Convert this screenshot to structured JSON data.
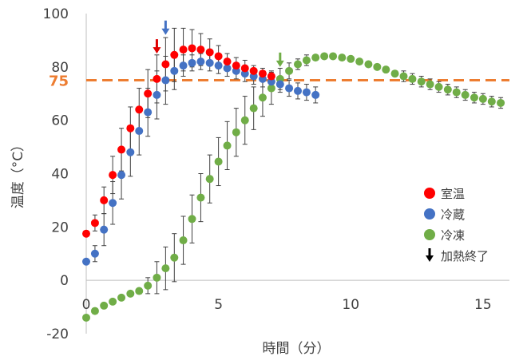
{
  "chart_data": {
    "type": "scatter",
    "xlabel": "時間（分）",
    "ylabel": "温度（°C）",
    "xlim": [
      0,
      16
    ],
    "ylim": [
      -20,
      100
    ],
    "x_ticks": [
      "0",
      "5",
      "10",
      "15"
    ],
    "y_ticks": [
      "-20",
      "0",
      "20",
      "40",
      "60",
      "80",
      "100"
    ],
    "grid": false,
    "legend_position": "right",
    "reference_line": {
      "y": 75,
      "label": "75",
      "color": "#ED7D31",
      "style": "dashed"
    },
    "series": [
      {
        "name": "室温",
        "color": "#FF0000",
        "points": [
          {
            "x": 0.0,
            "y": 17.5,
            "err": 0
          },
          {
            "x": 0.33,
            "y": 21.5,
            "err": 3
          },
          {
            "x": 0.67,
            "y": 30,
            "err": 5
          },
          {
            "x": 1.0,
            "y": 39.5,
            "err": 7
          },
          {
            "x": 1.33,
            "y": 49,
            "err": 8
          },
          {
            "x": 1.67,
            "y": 57,
            "err": 8
          },
          {
            "x": 2.0,
            "y": 64,
            "err": 8
          },
          {
            "x": 2.33,
            "y": 70,
            "err": 9
          },
          {
            "x": 2.67,
            "y": 75.5,
            "err": 9
          },
          {
            "x": 3.0,
            "y": 81,
            "err": 10
          },
          {
            "x": 3.33,
            "y": 84.5,
            "err": 10
          },
          {
            "x": 3.67,
            "y": 86.5,
            "err": 8
          },
          {
            "x": 4.0,
            "y": 87,
            "err": 7
          },
          {
            "x": 4.33,
            "y": 86.5,
            "err": 6
          },
          {
            "x": 4.67,
            "y": 85.5,
            "err": 5
          },
          {
            "x": 5.0,
            "y": 84,
            "err": 4
          },
          {
            "x": 5.33,
            "y": 82,
            "err": 3
          },
          {
            "x": 5.67,
            "y": 80.5,
            "err": 3
          },
          {
            "x": 6.0,
            "y": 79.5,
            "err": 3
          },
          {
            "x": 6.33,
            "y": 78.5,
            "err": 2
          },
          {
            "x": 6.67,
            "y": 77.5,
            "err": 2
          },
          {
            "x": 7.0,
            "y": 76.5,
            "err": 2
          }
        ]
      },
      {
        "name": "冷蔵",
        "color": "#4472C4",
        "points": [
          {
            "x": 0.0,
            "y": 7,
            "err": 0
          },
          {
            "x": 0.33,
            "y": 10,
            "err": 3
          },
          {
            "x": 0.67,
            "y": 19,
            "err": 6
          },
          {
            "x": 1.0,
            "y": 29,
            "err": 8
          },
          {
            "x": 1.33,
            "y": 39.5,
            "err": 9
          },
          {
            "x": 1.67,
            "y": 48,
            "err": 9
          },
          {
            "x": 2.0,
            "y": 56,
            "err": 9
          },
          {
            "x": 2.33,
            "y": 63,
            "err": 9
          },
          {
            "x": 2.67,
            "y": 69.5,
            "err": 9
          },
          {
            "x": 3.0,
            "y": 75,
            "err": 9
          },
          {
            "x": 3.33,
            "y": 78.5,
            "err": 7
          },
          {
            "x": 3.67,
            "y": 80.5,
            "err": 4
          },
          {
            "x": 4.0,
            "y": 81.5,
            "err": 3
          },
          {
            "x": 4.33,
            "y": 82,
            "err": 3
          },
          {
            "x": 4.67,
            "y": 81.5,
            "err": 3
          },
          {
            "x": 5.0,
            "y": 80.5,
            "err": 3
          },
          {
            "x": 5.33,
            "y": 79.5,
            "err": 3
          },
          {
            "x": 5.67,
            "y": 78.5,
            "err": 3
          },
          {
            "x": 6.0,
            "y": 77.5,
            "err": 3
          },
          {
            "x": 6.33,
            "y": 76.5,
            "err": 3
          },
          {
            "x": 6.67,
            "y": 75.5,
            "err": 3
          },
          {
            "x": 7.0,
            "y": 74.5,
            "err": 3
          },
          {
            "x": 7.33,
            "y": 73.5,
            "err": 3
          },
          {
            "x": 7.67,
            "y": 72,
            "err": 3
          },
          {
            "x": 8.0,
            "y": 71,
            "err": 3
          },
          {
            "x": 8.33,
            "y": 70.5,
            "err": 3
          },
          {
            "x": 8.67,
            "y": 69.5,
            "err": 3
          }
        ]
      },
      {
        "name": "冷凍",
        "color": "#70AD47",
        "points": [
          {
            "x": 0.0,
            "y": -14,
            "err": 0
          },
          {
            "x": 0.33,
            "y": -11.5,
            "err": 0
          },
          {
            "x": 0.67,
            "y": -9.5,
            "err": 0
          },
          {
            "x": 1.0,
            "y": -8,
            "err": 0
          },
          {
            "x": 1.33,
            "y": -6.5,
            "err": 0
          },
          {
            "x": 1.67,
            "y": -5,
            "err": 0
          },
          {
            "x": 2.0,
            "y": -4,
            "err": 0
          },
          {
            "x": 2.33,
            "y": -2,
            "err": 3
          },
          {
            "x": 2.67,
            "y": 1,
            "err": 6
          },
          {
            "x": 3.0,
            "y": 4.5,
            "err": 8
          },
          {
            "x": 3.33,
            "y": 8.5,
            "err": 9
          },
          {
            "x": 3.67,
            "y": 15,
            "err": 9
          },
          {
            "x": 4.0,
            "y": 23,
            "err": 9
          },
          {
            "x": 4.33,
            "y": 31,
            "err": 9
          },
          {
            "x": 4.67,
            "y": 38,
            "err": 9
          },
          {
            "x": 5.0,
            "y": 44.5,
            "err": 9
          },
          {
            "x": 5.33,
            "y": 50.5,
            "err": 9
          },
          {
            "x": 5.67,
            "y": 55.5,
            "err": 9
          },
          {
            "x": 6.0,
            "y": 60,
            "err": 9
          },
          {
            "x": 6.33,
            "y": 64.5,
            "err": 8
          },
          {
            "x": 6.67,
            "y": 68.5,
            "err": 7
          },
          {
            "x": 7.0,
            "y": 72,
            "err": 6
          },
          {
            "x": 7.33,
            "y": 75.5,
            "err": 4
          },
          {
            "x": 7.67,
            "y": 78.5,
            "err": 3
          },
          {
            "x": 8.0,
            "y": 81,
            "err": 2
          },
          {
            "x": 8.33,
            "y": 82.5,
            "err": 2
          },
          {
            "x": 8.67,
            "y": 83.5,
            "err": 1
          },
          {
            "x": 9.0,
            "y": 84,
            "err": 1
          },
          {
            "x": 9.33,
            "y": 84,
            "err": 1
          },
          {
            "x": 9.67,
            "y": 83.5,
            "err": 1
          },
          {
            "x": 10.0,
            "y": 83,
            "err": 1
          },
          {
            "x": 10.33,
            "y": 82,
            "err": 1
          },
          {
            "x": 10.67,
            "y": 81,
            "err": 1
          },
          {
            "x": 11.0,
            "y": 80,
            "err": 1
          },
          {
            "x": 11.33,
            "y": 79,
            "err": 1
          },
          {
            "x": 11.67,
            "y": 77.5,
            "err": 1
          },
          {
            "x": 12.0,
            "y": 76.5,
            "err": 2
          },
          {
            "x": 12.33,
            "y": 75.5,
            "err": 2
          },
          {
            "x": 12.67,
            "y": 74.5,
            "err": 2
          },
          {
            "x": 13.0,
            "y": 73.5,
            "err": 2
          },
          {
            "x": 13.33,
            "y": 72.5,
            "err": 2
          },
          {
            "x": 13.67,
            "y": 71.5,
            "err": 2
          },
          {
            "x": 14.0,
            "y": 70.5,
            "err": 2
          },
          {
            "x": 14.33,
            "y": 69.5,
            "err": 2
          },
          {
            "x": 14.67,
            "y": 68.5,
            "err": 2
          },
          {
            "x": 15.0,
            "y": 68,
            "err": 2
          },
          {
            "x": 15.33,
            "y": 67,
            "err": 2
          },
          {
            "x": 15.67,
            "y": 66.5,
            "err": 2
          }
        ]
      }
    ],
    "heating_end_markers": [
      {
        "series": "室温",
        "x": 2.67,
        "y": 85,
        "color": "#E00000"
      },
      {
        "series": "冷蔵",
        "x": 3.0,
        "y": 92,
        "color": "#4472C4"
      },
      {
        "series": "冷凍",
        "x": 7.33,
        "y": 80,
        "color": "#70AD47"
      }
    ],
    "legend": [
      {
        "label": "室温",
        "marker": "circle",
        "color": "#FF0000"
      },
      {
        "label": "冷蔵",
        "marker": "circle",
        "color": "#4472C4"
      },
      {
        "label": "冷凍",
        "marker": "circle",
        "color": "#70AD47"
      },
      {
        "label": "加熱終了",
        "marker": "arrow",
        "color": "#000000"
      }
    ]
  }
}
